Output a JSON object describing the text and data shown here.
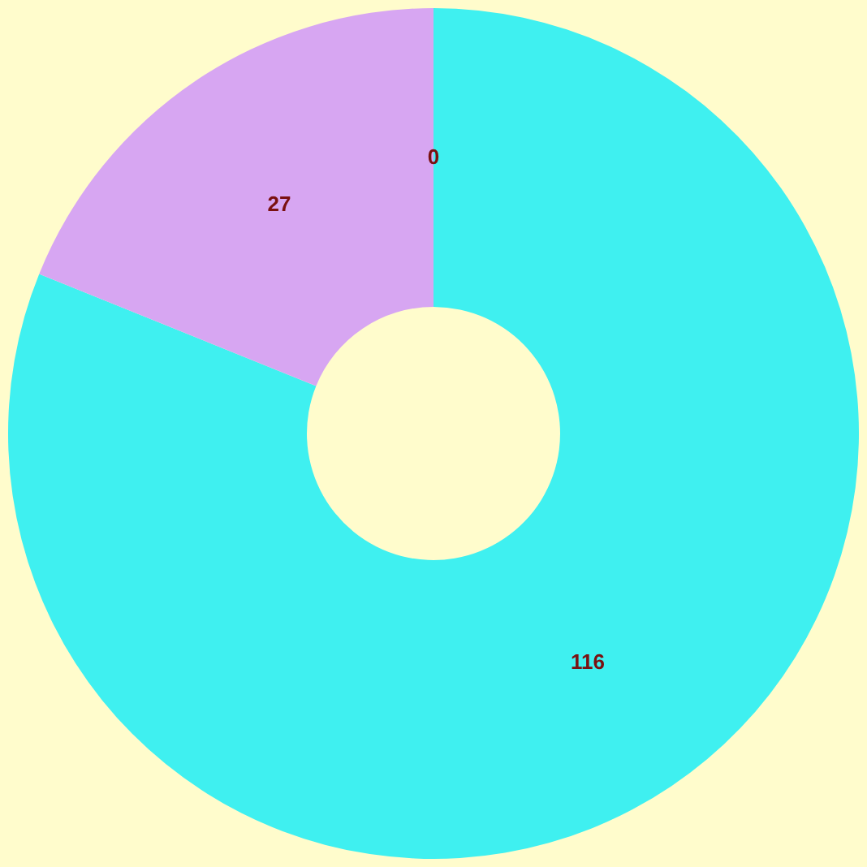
{
  "chart_data": {
    "type": "donut",
    "categories": [
      null,
      null,
      null
    ],
    "values": [
      116,
      27,
      0
    ],
    "colors": [
      "#3ff0f0",
      "#d7a6f2",
      "#f4a460"
    ],
    "value_labels": [
      "116",
      "27",
      "0"
    ]
  }
}
